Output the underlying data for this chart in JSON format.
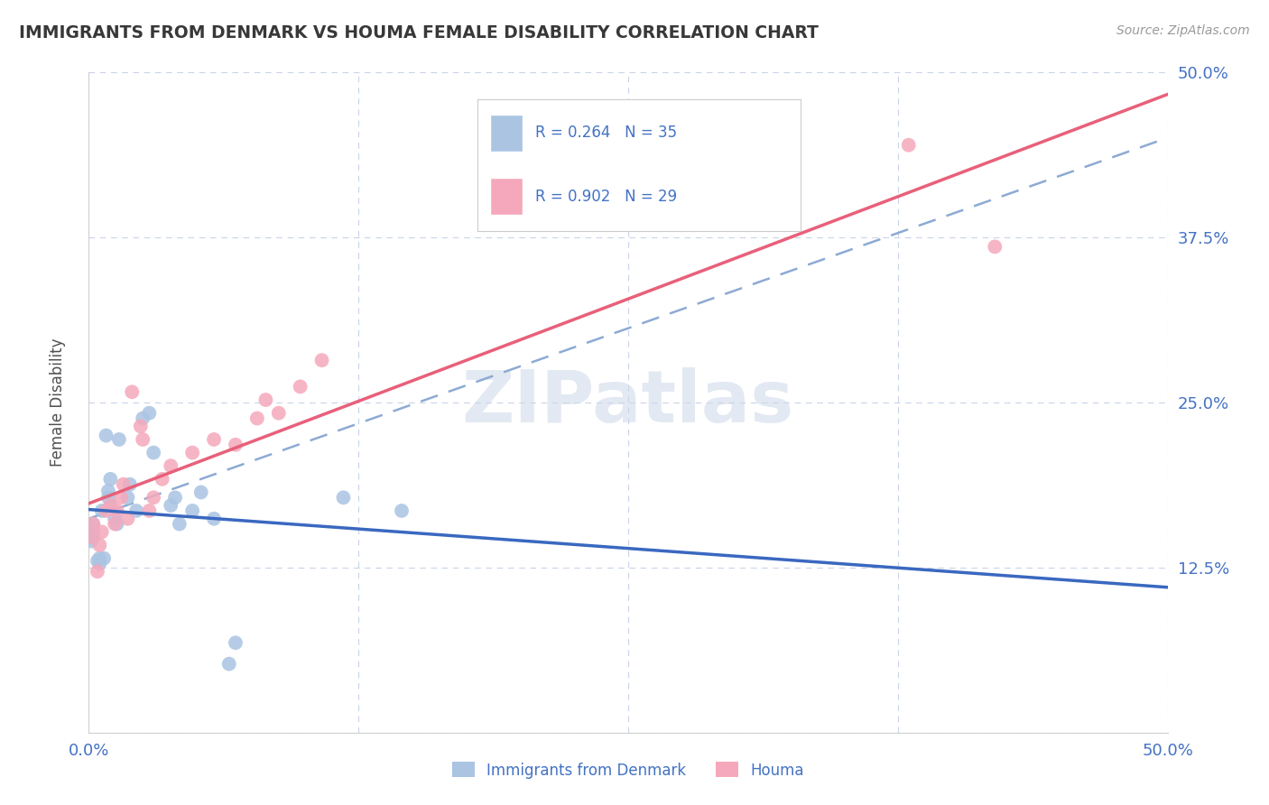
{
  "title": "IMMIGRANTS FROM DENMARK VS HOUMA FEMALE DISABILITY CORRELATION CHART",
  "source": "Source: ZipAtlas.com",
  "ylabel": "Female Disability",
  "watermark": "ZIPatlas",
  "xlim": [
    0.0,
    0.5
  ],
  "ylim": [
    0.0,
    0.5
  ],
  "denmark_R": 0.264,
  "denmark_N": 35,
  "houma_R": 0.902,
  "houma_N": 29,
  "denmark_color": "#aac4e2",
  "houma_color": "#f5a8bb",
  "denmark_line_color": "#3a68c0",
  "houma_line_color": "#e8607a",
  "trend_line_color": "#8daad4",
  "denmark_x": [
    0.001,
    0.001,
    0.001,
    0.002,
    0.002,
    0.002,
    0.004,
    0.005,
    0.005,
    0.006,
    0.007,
    0.008,
    0.009,
    0.009,
    0.01,
    0.01,
    0.012,
    0.013,
    0.014,
    0.018,
    0.019,
    0.022,
    0.025,
    0.028,
    0.03,
    0.038,
    0.04,
    0.042,
    0.048,
    0.052,
    0.058,
    0.065,
    0.068,
    0.118,
    0.145
  ],
  "denmark_y": [
    0.145,
    0.15,
    0.155,
    0.148,
    0.153,
    0.158,
    0.13,
    0.128,
    0.132,
    0.168,
    0.132,
    0.225,
    0.178,
    0.183,
    0.172,
    0.192,
    0.162,
    0.158,
    0.222,
    0.178,
    0.188,
    0.168,
    0.238,
    0.242,
    0.212,
    0.172,
    0.178,
    0.158,
    0.168,
    0.182,
    0.162,
    0.052,
    0.068,
    0.178,
    0.168
  ],
  "houma_x": [
    0.001,
    0.002,
    0.004,
    0.005,
    0.006,
    0.008,
    0.01,
    0.012,
    0.013,
    0.015,
    0.016,
    0.018,
    0.02,
    0.024,
    0.025,
    0.028,
    0.03,
    0.034,
    0.038,
    0.048,
    0.058,
    0.068,
    0.078,
    0.082,
    0.088,
    0.098,
    0.108,
    0.38,
    0.42
  ],
  "houma_y": [
    0.148,
    0.158,
    0.122,
    0.142,
    0.152,
    0.168,
    0.172,
    0.158,
    0.168,
    0.178,
    0.188,
    0.162,
    0.258,
    0.232,
    0.222,
    0.168,
    0.178,
    0.192,
    0.202,
    0.212,
    0.222,
    0.218,
    0.238,
    0.252,
    0.242,
    0.262,
    0.282,
    0.445,
    0.368
  ],
  "background_color": "#ffffff",
  "grid_color": "#c8d4e8",
  "title_color": "#383838",
  "axis_label_color": "#505050",
  "tick_label_color": "#4472c4"
}
